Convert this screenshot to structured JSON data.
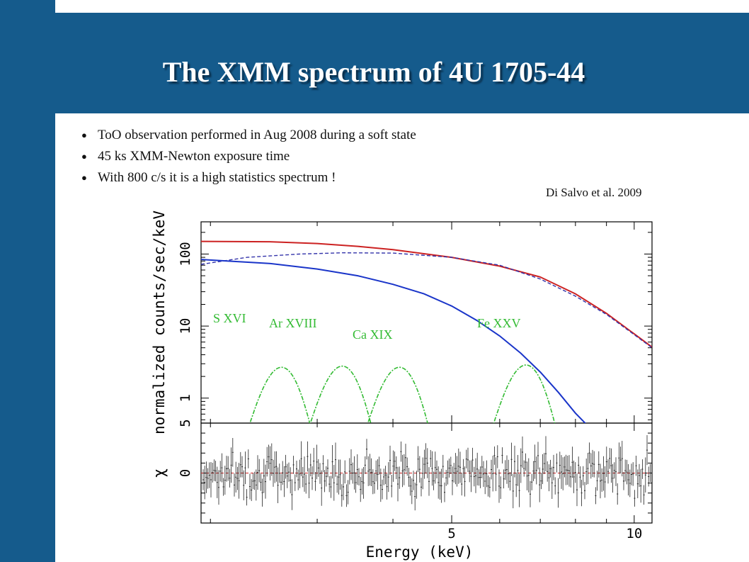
{
  "slide": {
    "title": "The XMM spectrum of 4U 1705-44",
    "bullets": [
      "ToO observation performed in Aug 2008 during a soft state",
      "45 ks XMM-Newton exposure time",
      "With 800 c/s it is a high statistics spectrum !"
    ],
    "bullet_marker": "●",
    "citation": "Di Salvo et al. 2009",
    "colors": {
      "band": "#155b8c",
      "title_text": "#ffffff"
    }
  },
  "chart_data": {
    "type": "line",
    "xlabel": "Energy (keV)",
    "xscale": "log",
    "xlim": [
      1.93,
      10.7
    ],
    "x_ticks": [
      5,
      10
    ],
    "x_ticklabels": [
      "5",
      "10"
    ],
    "top_panel": {
      "ylabel": "normalized counts/sec/keV",
      "yscale": "log",
      "ylim": [
        0.45,
        280
      ],
      "y_ticks": [
        1,
        10,
        100
      ],
      "y_ticklabels": [
        "1",
        "10",
        "100"
      ],
      "series": [
        {
          "style": "data+total model",
          "color": "#cc2222",
          "x": [
            1.93,
            2.5,
            3,
            3.5,
            4,
            5,
            6,
            7,
            8,
            9,
            10,
            10.7
          ],
          "y": [
            150,
            148,
            140,
            128,
            115,
            90,
            68,
            48,
            28,
            15,
            7.8,
            5.1
          ]
        },
        {
          "style": "dashed",
          "color": "#3333aa",
          "x": [
            1.93,
            2.3,
            2.8,
            3.3,
            4,
            5,
            6,
            7,
            8,
            9,
            10,
            10.7
          ],
          "y": [
            72,
            90,
            100,
            104,
            103,
            90,
            70,
            45,
            26,
            14.5,
            7.6,
            5
          ]
        },
        {
          "style": "solid",
          "color": "#1a35c9",
          "x": [
            1.93,
            2.5,
            3,
            3.5,
            4,
            4.5,
            5,
            5.5,
            6,
            6.5,
            7,
            7.5,
            8,
            8.7
          ],
          "y": [
            84,
            74,
            62,
            50,
            38,
            28,
            19,
            12,
            7.3,
            4.2,
            2.3,
            1.2,
            0.62,
            0.3
          ]
        }
      ],
      "lines": [
        {
          "label": "S XVI",
          "center": 2.62,
          "peak": 2.6,
          "color": "#33bb33"
        },
        {
          "label": "Ar XVIII",
          "center": 3.3,
          "peak": 2.7,
          "color": "#33bb33"
        },
        {
          "label": "Ca XIX",
          "center": 4.1,
          "peak": 2.6,
          "color": "#33bb33"
        },
        {
          "label": "Fe XXV",
          "center": 6.63,
          "peak": 2.8,
          "color": "#33bb33"
        }
      ]
    },
    "bottom_panel": {
      "ylabel": "χ",
      "ylim": [
        -5,
        5
      ],
      "y_ticks": [
        0,
        5
      ],
      "y_ticklabels": [
        "0",
        "5"
      ],
      "zero_line_color": "#cc2222",
      "residual_color": "#222222"
    }
  }
}
